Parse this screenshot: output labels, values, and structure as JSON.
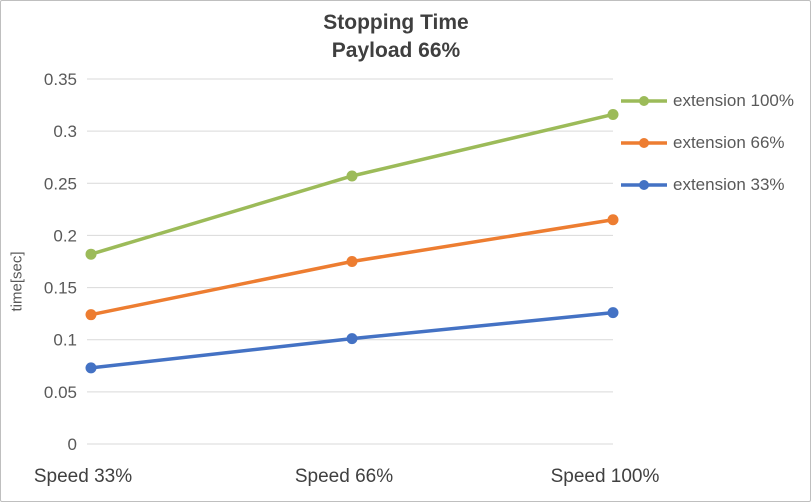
{
  "chart_data": {
    "type": "line",
    "title": "Stopping Time",
    "subtitle": "Payload 66%",
    "ylabel": "time[sec]",
    "categories": [
      "Speed 33%",
      "Speed 66%",
      "Speed 100%"
    ],
    "series": [
      {
        "name": "extension 100%",
        "color": "#9CBB59",
        "values": [
          0.182,
          0.257,
          0.316
        ]
      },
      {
        "name": "extension 66%",
        "color": "#ED7D31",
        "values": [
          0.124,
          0.175,
          0.215
        ]
      },
      {
        "name": "extension 33%",
        "color": "#4472C4",
        "values": [
          0.073,
          0.101,
          0.126
        ]
      }
    ],
    "ylim": [
      0,
      0.35
    ],
    "ytick_step": 0.05,
    "ytick_labels": [
      "0",
      "0.05",
      "0.1",
      "0.15",
      "0.2",
      "0.25",
      "0.3",
      "0.35"
    ],
    "grid": true,
    "grid_color": "#D9D9D9",
    "axis_text_color": "#595959",
    "category_text_color": "#404040",
    "title_color": "#3F3F3F",
    "legend_position": "right"
  }
}
